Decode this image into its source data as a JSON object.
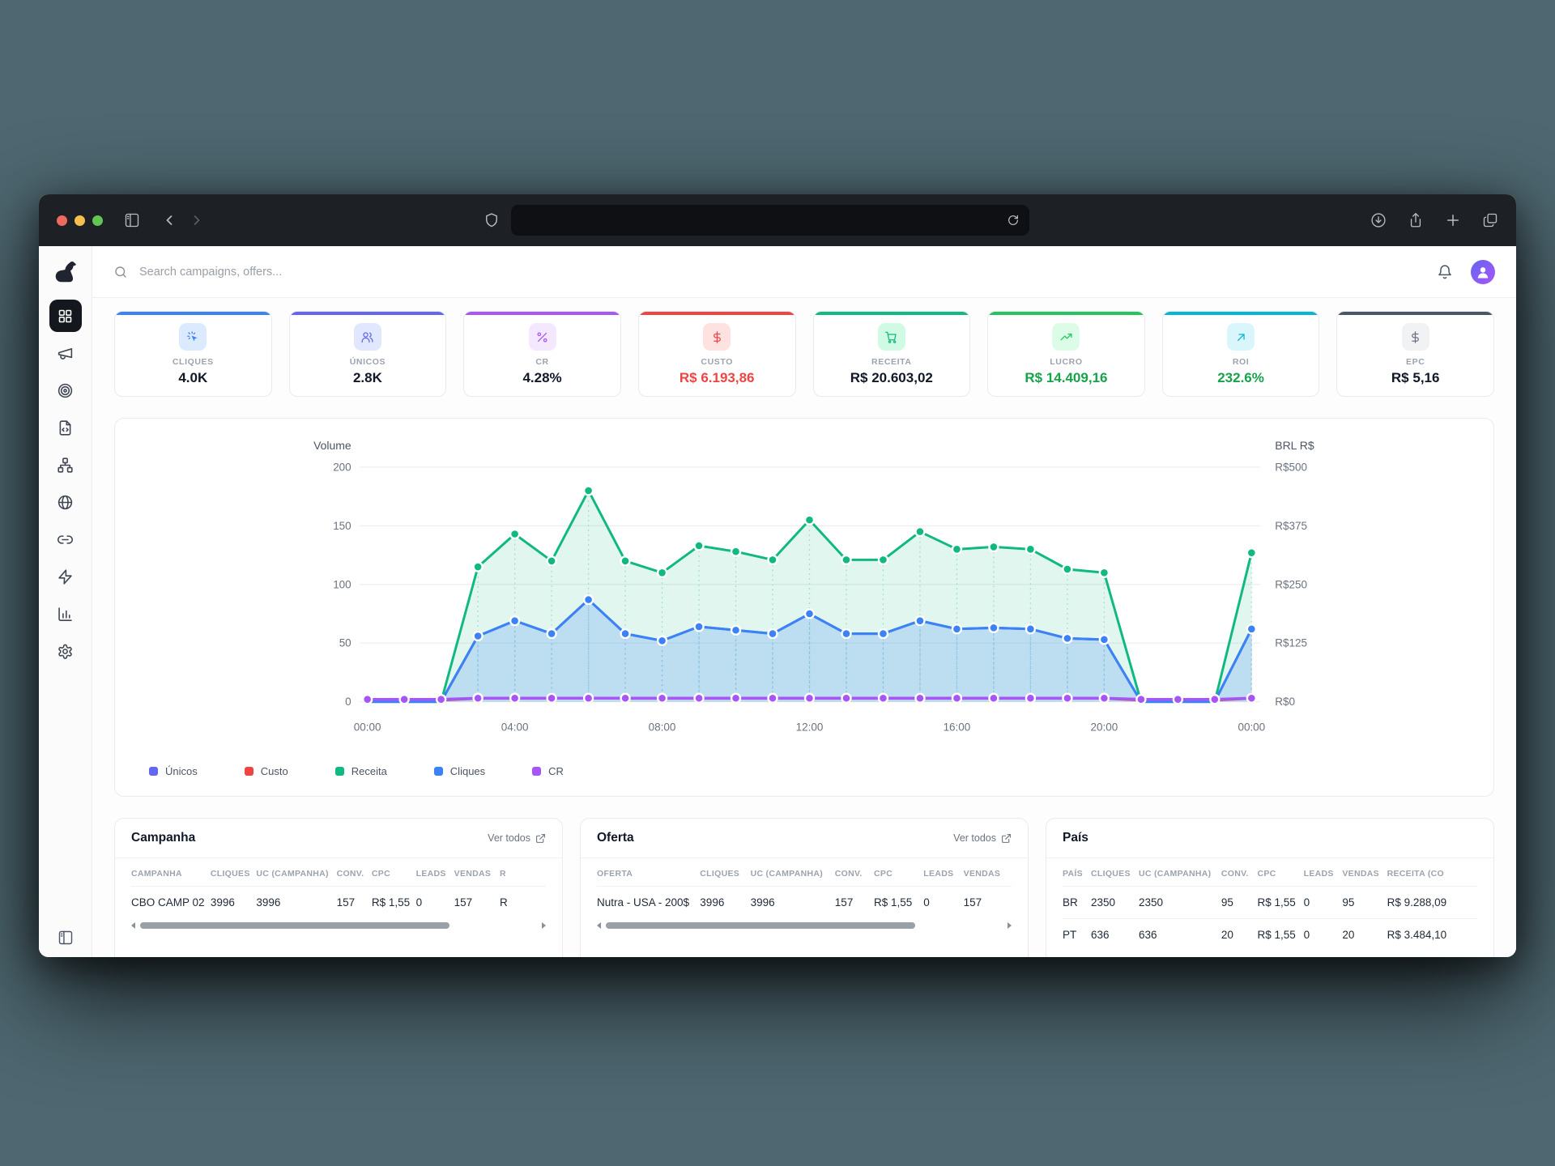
{
  "browser": {
    "url_text": ""
  },
  "header": {
    "search_placeholder": "Search campaigns, offers..."
  },
  "sidebar": {
    "items": [
      {
        "id": "dashboard",
        "icon": "layout-grid-icon",
        "active": true
      },
      {
        "id": "campaigns",
        "icon": "megaphone-icon",
        "active": false
      },
      {
        "id": "targeting",
        "icon": "target-icon",
        "active": false
      },
      {
        "id": "landing-pages",
        "icon": "file-code-icon",
        "active": false
      },
      {
        "id": "funnels",
        "icon": "network-icon",
        "active": false
      },
      {
        "id": "domains",
        "icon": "globe-icon",
        "active": false
      },
      {
        "id": "links",
        "icon": "link-icon",
        "active": false
      },
      {
        "id": "automations",
        "icon": "zap-icon",
        "active": false
      },
      {
        "id": "reports",
        "icon": "bar-chart-icon",
        "active": false
      },
      {
        "id": "settings",
        "icon": "gear-icon",
        "active": false
      }
    ]
  },
  "kpis": [
    {
      "label": "CLIQUES",
      "value": "4.0K",
      "icon": "cursor-click-icon",
      "accent": "#3b82f6",
      "chip_bg": "#dbeafe",
      "icon_color": "#3b82f6",
      "value_color": "#111827"
    },
    {
      "label": "ÚNICOS",
      "value": "2.8K",
      "icon": "users-icon",
      "accent": "#6366f1",
      "chip_bg": "#e0e7ff",
      "icon_color": "#6366f1",
      "value_color": "#111827"
    },
    {
      "label": "CR",
      "value": "4.28%",
      "icon": "percent-icon",
      "accent": "#a855f7",
      "chip_bg": "#f3e8ff",
      "icon_color": "#a855f7",
      "value_color": "#111827"
    },
    {
      "label": "CUSTO",
      "value": "R$ 6.193,86",
      "icon": "dollar-icon",
      "accent": "#ef4444",
      "chip_bg": "#fee2e2",
      "icon_color": "#ef4444",
      "value_color": "#ef4444"
    },
    {
      "label": "RECEITA",
      "value": "R$ 20.603,02",
      "icon": "cart-icon",
      "accent": "#10b981",
      "chip_bg": "#d1fae5",
      "icon_color": "#10b981",
      "value_color": "#111827"
    },
    {
      "label": "LUCRO",
      "value": "R$ 14.409,16",
      "icon": "trending-up-icon",
      "accent": "#22c55e",
      "chip_bg": "#dcfce7",
      "icon_color": "#22c55e",
      "value_color": "#16a34a"
    },
    {
      "label": "ROI",
      "value": "232.6%",
      "icon": "arrow-up-right-icon",
      "accent": "#06b6d4",
      "chip_bg": "#d9f6fd",
      "icon_color": "#06b6d4",
      "value_color": "#16a34a"
    },
    {
      "label": "EPC",
      "value": "R$ 5,16",
      "icon": "dollar-icon",
      "accent": "#4b5563",
      "chip_bg": "#f1f2f4",
      "icon_color": "#6b7280",
      "value_color": "#111827"
    }
  ],
  "chart_data": {
    "type": "area",
    "x_hour_count": 25,
    "x_tick_labels": [
      {
        "index": 0,
        "label": "00:00"
      },
      {
        "index": 4,
        "label": "04:00"
      },
      {
        "index": 8,
        "label": "08:00"
      },
      {
        "index": 12,
        "label": "12:00"
      },
      {
        "index": 16,
        "label": "16:00"
      },
      {
        "index": 20,
        "label": "20:00"
      },
      {
        "index": 24,
        "label": "00:00"
      }
    ],
    "left_axis": {
      "title": "Volume",
      "max": 200,
      "ticks": [
        0,
        50,
        100,
        150,
        200
      ]
    },
    "right_axis": {
      "title": "BRL R$",
      "max": 500,
      "tick_labels": [
        "R$0",
        "R$125",
        "R$250",
        "R$375",
        "R$500"
      ]
    },
    "series": [
      {
        "name": "Únicos",
        "color": "#6366f1",
        "axis": "left",
        "area": false,
        "dots": false,
        "values": [
          0,
          0,
          0,
          56,
          69,
          58,
          87,
          58,
          52,
          64,
          61,
          58,
          75,
          58,
          58,
          69,
          62,
          63,
          62,
          54,
          53,
          0,
          0,
          0,
          62
        ]
      },
      {
        "name": "Custo",
        "color": "#ef4444",
        "axis": "right",
        "area": false,
        "dots": false,
        "values": [
          2,
          2,
          2,
          6,
          6,
          6,
          7,
          6,
          6,
          6,
          6,
          6,
          6,
          6,
          6,
          6,
          6,
          6,
          6,
          6,
          6,
          2,
          2,
          2,
          6
        ]
      },
      {
        "name": "Receita",
        "color": "#10b981",
        "axis": "left",
        "area": true,
        "fill_opacity": 0.12,
        "dots": true,
        "drop": "#b9e6d4",
        "values": [
          0,
          0,
          0,
          115,
          143,
          120,
          180,
          120,
          110,
          133,
          128,
          121,
          155,
          121,
          121,
          145,
          130,
          132,
          130,
          113,
          110,
          0,
          0,
          0,
          127
        ]
      },
      {
        "name": "Cliques",
        "color": "#3b82f6",
        "axis": "left",
        "area": true,
        "fill_opacity": 0.22,
        "dots": true,
        "drop": "#b7d4f8",
        "values": [
          0,
          0,
          0,
          56,
          69,
          58,
          87,
          58,
          52,
          64,
          61,
          58,
          75,
          58,
          58,
          69,
          62,
          63,
          62,
          54,
          53,
          0,
          0,
          0,
          62
        ]
      },
      {
        "name": "CR",
        "color": "#a855f7",
        "axis": "left",
        "area": false,
        "dots": true,
        "dots_all": true,
        "values": [
          2,
          2,
          2,
          3,
          3,
          3,
          3,
          3,
          3,
          3,
          3,
          3,
          3,
          3,
          3,
          3,
          3,
          3,
          3,
          3,
          3,
          2,
          2,
          2,
          3
        ]
      }
    ],
    "legend": [
      {
        "label": "Únicos",
        "color": "#6366f1"
      },
      {
        "label": "Custo",
        "color": "#ef4444"
      },
      {
        "label": "Receita",
        "color": "#10b981"
      },
      {
        "label": "Cliques",
        "color": "#3b82f6"
      },
      {
        "label": "CR",
        "color": "#a855f7"
      }
    ]
  },
  "tables": [
    {
      "title": "Campanha",
      "link_label": "Ver todos",
      "scrollbar": true,
      "columns": [
        "CAMPANHA",
        "CLIQUES",
        "UC (CAMPANHA)",
        "CONV.",
        "CPC",
        "LEADS",
        "VENDAS",
        "R"
      ],
      "rows": [
        [
          "CBO CAMP 02",
          "3996",
          "3996",
          "157",
          "R$ 1,55",
          "0",
          "157",
          "R"
        ]
      ]
    },
    {
      "title": "Oferta",
      "link_label": "Ver todos",
      "scrollbar": true,
      "columns": [
        "OFERTA",
        "CLIQUES",
        "UC (CAMPANHA)",
        "CONV.",
        "CPC",
        "LEADS",
        "VENDAS"
      ],
      "rows": [
        [
          "Nutra - USA - 200$",
          "3996",
          "3996",
          "157",
          "R$ 1,55",
          "0",
          "157"
        ]
      ]
    },
    {
      "title": "País",
      "link_label": null,
      "scrollbar": false,
      "columns": [
        "PAÍS",
        "CLIQUES",
        "UC (CAMPANHA)",
        "CONV.",
        "CPC",
        "LEADS",
        "VENDAS",
        "RECEITA (CO"
      ],
      "rows": [
        [
          "BR",
          "2350",
          "2350",
          "95",
          "R$ 1,55",
          "0",
          "95",
          "R$ 9.288,09"
        ],
        [
          "PT",
          "636",
          "636",
          "20",
          "R$ 1,55",
          "0",
          "20",
          "R$ 3.484,10"
        ]
      ]
    }
  ]
}
